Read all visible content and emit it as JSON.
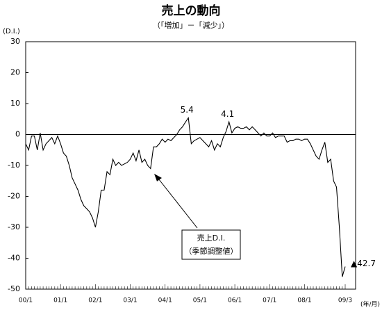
{
  "chart_data": {
    "type": "line",
    "title": "売上の動向",
    "subtitle": "（「増加」－「減少」）",
    "y_label": "(D.I.)",
    "x_label": "(年/月)",
    "annotations": [
      "売上D.I.",
      "（季節調整値）"
    ],
    "categories": [
      "00/1",
      null,
      null,
      null,
      null,
      null,
      null,
      null,
      null,
      null,
      null,
      null,
      "01/1",
      null,
      null,
      null,
      null,
      null,
      null,
      null,
      null,
      null,
      null,
      null,
      "02/1",
      null,
      null,
      null,
      null,
      null,
      null,
      null,
      null,
      null,
      null,
      null,
      "03/1",
      null,
      null,
      null,
      null,
      null,
      null,
      null,
      null,
      null,
      null,
      null,
      "04/1",
      null,
      null,
      null,
      null,
      null,
      null,
      null,
      null,
      null,
      null,
      null,
      "05/1",
      null,
      null,
      null,
      null,
      null,
      null,
      null,
      null,
      null,
      null,
      null,
      "06/1",
      null,
      null,
      null,
      null,
      null,
      null,
      null,
      null,
      null,
      null,
      null,
      "07/1",
      null,
      null,
      null,
      null,
      null,
      null,
      null,
      null,
      null,
      null,
      null,
      "08/1",
      null,
      null,
      null,
      null,
      null,
      null,
      null,
      null,
      null,
      null,
      null,
      null,
      null,
      "09/3"
    ],
    "series": [
      {
        "name": "売上D.I.",
        "color": "#000000",
        "values": [
          -3,
          -5,
          -0.5,
          -0.5,
          -5,
          0.5,
          -5,
          -3,
          -2,
          -1,
          -3,
          -0.5,
          -3,
          -6,
          -7,
          -10,
          -14,
          -16,
          -18,
          -21,
          -23,
          -24,
          -25,
          -27,
          -30,
          -25,
          -18,
          -18,
          -12,
          -13,
          -8,
          -10,
          -9,
          -10,
          -9.5,
          -9,
          -8,
          -6,
          -8.5,
          -5,
          -9,
          -8,
          -10,
          -11,
          -4,
          -4,
          -3,
          -1.5,
          -2.5,
          -1.5,
          -2,
          -1,
          0,
          1.5,
          2.5,
          4,
          5.4,
          -3,
          -2,
          -1.5,
          -1,
          -2,
          -3,
          -4,
          -2,
          -5,
          -3,
          -4,
          -1,
          1,
          4.1,
          0.5,
          2,
          2.5,
          2,
          2,
          2.5,
          1.5,
          2.5,
          1.5,
          0.5,
          -0.5,
          0.5,
          -0.5,
          -0.5,
          0.5,
          -1,
          -0.5,
          -0.5,
          -0.5,
          -2.5,
          -2,
          -2,
          -1.5,
          -1.5,
          -2,
          -1.5,
          -1.5,
          -3,
          -5,
          -7,
          -8,
          -5,
          -2.5,
          -9,
          -8,
          -15,
          -17,
          -30,
          -46,
          -42.7
        ],
        "value_labels": [
          null,
          null,
          null,
          null,
          null,
          null,
          null,
          null,
          null,
          null,
          null,
          null,
          null,
          null,
          null,
          null,
          null,
          null,
          null,
          null,
          null,
          null,
          null,
          null,
          null,
          null,
          null,
          null,
          null,
          null,
          null,
          null,
          null,
          null,
          null,
          null,
          null,
          null,
          null,
          null,
          null,
          null,
          null,
          null,
          null,
          null,
          null,
          null,
          null,
          null,
          null,
          null,
          null,
          null,
          null,
          null,
          "5.4",
          null,
          null,
          null,
          null,
          null,
          null,
          null,
          null,
          null,
          null,
          null,
          null,
          null,
          "4.1",
          null,
          null,
          null,
          null,
          null,
          null,
          null,
          null,
          null,
          null,
          null,
          null,
          null,
          null,
          null,
          null,
          null,
          null,
          null,
          null,
          null,
          null,
          null,
          null,
          null,
          null,
          null,
          null,
          null,
          null,
          null,
          null,
          null,
          null,
          null,
          null,
          null,
          null,
          null,
          "▲42.7"
        ]
      }
    ],
    "ylim": [
      -50,
      30
    ],
    "yticks": [
      -50,
      -40,
      -30,
      -20,
      -10,
      0,
      10,
      20,
      30
    ],
    "grid": false
  }
}
